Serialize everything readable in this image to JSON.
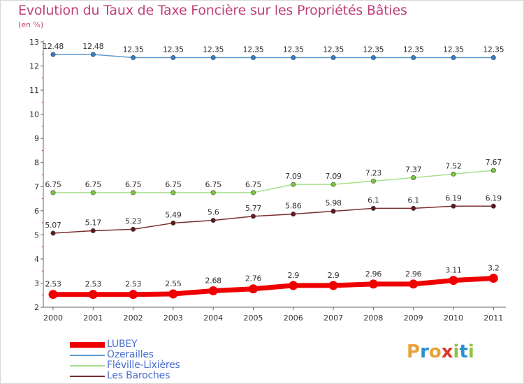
{
  "header": {
    "title": "Evolution du Taux de Taxe Foncière sur les Propriétés Bâties",
    "subtitle": "(en %)"
  },
  "branding": {
    "logo_letters": [
      {
        "char": "P",
        "color": "#e8a23a"
      },
      {
        "char": "r",
        "color": "#2d8fd2"
      },
      {
        "char": "o",
        "color": "#e8a23a"
      },
      {
        "char": "x",
        "color": "#d93a2b"
      },
      {
        "char": "i",
        "color": "#8cc43c"
      },
      {
        "char": "t",
        "color": "#2d8fd2"
      },
      {
        "char": "i",
        "color": "#8cc43c"
      }
    ]
  },
  "chart_data": {
    "type": "line",
    "title": "Evolution du Taux de Taxe Foncière sur les Propriétés Bâties",
    "ylabel": "(en %)",
    "xlabel": "",
    "categories": [
      "2000",
      "2001",
      "2002",
      "2003",
      "2004",
      "2005",
      "2006",
      "2007",
      "2008",
      "2009",
      "2010",
      "2011"
    ],
    "ylim": [
      2,
      13
    ],
    "yticks": [
      2,
      3,
      4,
      5,
      6,
      7,
      8,
      9,
      10,
      11,
      12,
      13
    ],
    "grid": false,
    "legend_position": "bottom-left",
    "series": [
      {
        "name": "Ozerailles",
        "color": "#5b9bd5",
        "marker_color": "#3a7cc0",
        "emphasis": false,
        "values": [
          12.48,
          12.48,
          12.35,
          12.35,
          12.35,
          12.35,
          12.35,
          12.35,
          12.35,
          12.35,
          12.35,
          12.35
        ],
        "labels": [
          "12.48",
          "12.48",
          "12.35",
          "12.35",
          "12.35",
          "12.35",
          "12.35",
          "12.35",
          "12.35",
          "12.35",
          "12.35",
          "12.35"
        ]
      },
      {
        "name": "Fléville-Lixières",
        "color": "#a8e08a",
        "marker_color": "#7cc645",
        "emphasis": false,
        "values": [
          6.75,
          6.75,
          6.75,
          6.75,
          6.75,
          6.75,
          7.09,
          7.09,
          7.23,
          7.37,
          7.52,
          7.67
        ],
        "labels": [
          "6.75",
          "6.75",
          "6.75",
          "6.75",
          "6.75",
          "6.75",
          "7.09",
          "7.09",
          "7.23",
          "7.37",
          "7.52",
          "7.67"
        ]
      },
      {
        "name": "Les Baroches",
        "color": "#7a2e2e",
        "marker_color": "#5c1a1a",
        "emphasis": false,
        "values": [
          5.07,
          5.17,
          5.23,
          5.49,
          5.6,
          5.77,
          5.86,
          5.98,
          6.1,
          6.1,
          6.19,
          6.19
        ],
        "labels": [
          "5.07",
          "5.17",
          "5.23",
          "5.49",
          "5.6",
          "5.77",
          "5.86",
          "5.98",
          "6.1",
          "6.1",
          "6.19",
          "6.19"
        ]
      },
      {
        "name": "LUBEY",
        "color": "#ee0000",
        "marker_color": "#ee0000",
        "emphasis": true,
        "values": [
          2.53,
          2.53,
          2.53,
          2.55,
          2.68,
          2.76,
          2.9,
          2.9,
          2.96,
          2.96,
          3.11,
          3.2
        ],
        "labels": [
          "2.53",
          "2.53",
          "2.53",
          "2.55",
          "2.68",
          "2.76",
          "2.9",
          "2.9",
          "2.96",
          "2.96",
          "3.11",
          "3.2"
        ]
      }
    ],
    "legend_order": [
      "LUBEY",
      "Ozerailles",
      "Fléville-Lixières",
      "Les Baroches"
    ]
  }
}
